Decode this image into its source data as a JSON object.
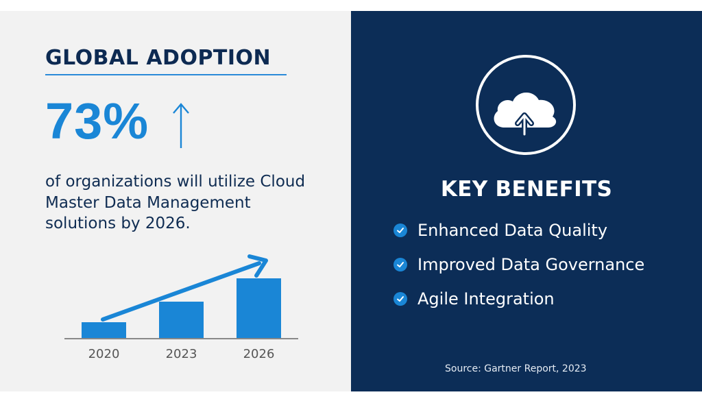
{
  "left": {
    "title": "GLOBAL ADOPTION",
    "stat_value": "73%",
    "stat_icon": "arrow-up-icon",
    "description": "of organizations will utilize Cloud Master Data Management solutions by 2026."
  },
  "right": {
    "hero_icon": "cloud-upload-icon",
    "benefits_title": "KEY BENEFITS",
    "benefits": [
      {
        "label": "Enhanced Data Quality",
        "icon": "check-circle-icon"
      },
      {
        "label": "Improved Data Governance",
        "icon": "check-circle-icon"
      },
      {
        "label": "Agile Integration",
        "icon": "check-circle-icon"
      }
    ],
    "source": "Source: Gartner Report, 2023"
  },
  "colors": {
    "accent": "#1a86d6",
    "navy_panel": "#0c2d57",
    "heading_text": "#0d2a52",
    "left_background": "#f2f2f2",
    "axis": "#888888",
    "tick_text": "#555555"
  },
  "chart_data": {
    "type": "bar",
    "title": "",
    "categories": [
      "2020",
      "2023",
      "2026"
    ],
    "values": [
      24,
      54,
      88
    ],
    "xlabel": "",
    "ylabel": "",
    "y_axis_shown": false,
    "grid": false,
    "legend": "none",
    "annotations": [
      "upward trend arrow from 2020 to 2026"
    ],
    "notes": "Bar heights are relative (no y-axis scale shown); values in pixels of bar height."
  }
}
